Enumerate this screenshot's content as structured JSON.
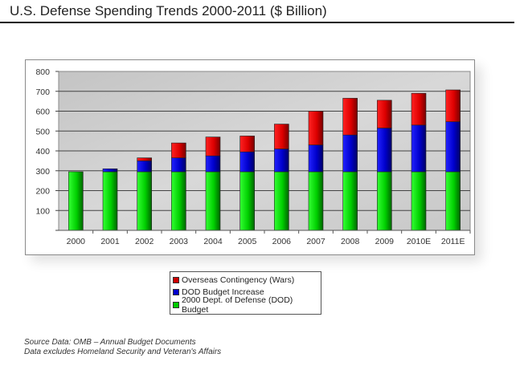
{
  "page": {
    "title": "U.S. Defense Spending Trends 2000-2011 ($ Billion)",
    "footer_lines": [
      "Source Data: OMB – Annual Budget Documents",
      "Data excludes Homeland Security and Veteran's Affairs"
    ]
  },
  "chart_data": {
    "type": "bar",
    "stacked": true,
    "title": "U.S. Defense Spending Trends 2000-2011 ($ Billion)",
    "xlabel": "",
    "ylabel": "",
    "ylim": [
      0,
      800
    ],
    "yticks": [
      0,
      100,
      200,
      300,
      400,
      500,
      600,
      700,
      800
    ],
    "ytick_labels": [
      "",
      "100",
      "200",
      "300",
      "400",
      "500",
      "600",
      "700",
      "800"
    ],
    "grid": true,
    "legend_position": "bottom-center",
    "categories": [
      "2000",
      "2001",
      "2002",
      "2003",
      "2004",
      "2005",
      "2006",
      "2007",
      "2008",
      "2009",
      "2010E",
      "2011E"
    ],
    "series": [
      {
        "name": "2000 Dept. of Defense (DOD) Budget",
        "color": "#00dd00",
        "values": [
          295,
          295,
          295,
          295,
          295,
          295,
          295,
          295,
          295,
          295,
          295,
          295
        ]
      },
      {
        "name": "DOD Budget Increase",
        "color": "#0000dd",
        "values": [
          0,
          15,
          55,
          70,
          80,
          100,
          115,
          135,
          185,
          220,
          235,
          252
        ]
      },
      {
        "name": "Overseas Contingency (Wars)",
        "color": "#ee0000",
        "values": [
          0,
          0,
          15,
          75,
          95,
          80,
          125,
          170,
          185,
          140,
          160,
          160
        ]
      }
    ],
    "legend_order": [
      "Overseas Contingency (Wars)",
      "DOD Budget Increase",
      "2000 Dept. of Defense (DOD) Budget"
    ]
  }
}
